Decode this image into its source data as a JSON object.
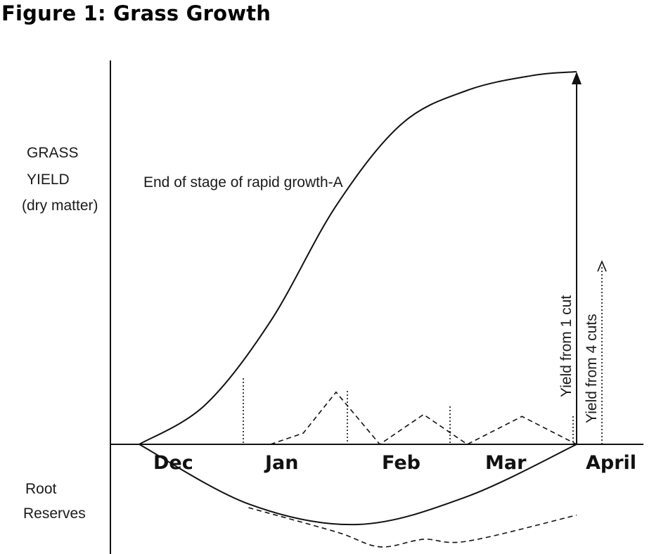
{
  "title": "Figure 1: Grass Growth",
  "chart_data": {
    "type": "line",
    "title": "Figure 1: Grass Growth",
    "ylabel_lines": [
      "GRASS",
      "YIELD",
      "(dry matter)"
    ],
    "lower_label_lines": [
      "Root",
      "Reserves"
    ],
    "categories": [
      "Dec",
      "Jan",
      "Feb",
      "Mar",
      "April"
    ],
    "annotations": {
      "rapid_growth": "End of stage of rapid growth-A",
      "one_cut": "Yield from  1 cut",
      "four_cuts": "Yield  from 4 cuts"
    },
    "grid": false,
    "series": [
      {
        "name": "",
        "style": "solid",
        "x": [
          0.0,
          0.6,
          1.2,
          1.8,
          2.4,
          3.0,
          3.6,
          4.0
        ],
        "y": [
          0.0,
          10.5,
          33.0,
          64.0,
          86.0,
          95.0,
          99.0,
          100.0
        ]
      },
      {
        "name": "",
        "style": "dashed",
        "x": [
          1.2,
          1.5,
          1.8,
          2.2,
          2.6,
          3.0,
          3.5,
          4.0
        ],
        "y": [
          0.0,
          3.0,
          14.0,
          0.0,
          8.0,
          0.0,
          7.5,
          0.0
        ]
      },
      {
        "name": "",
        "style": "solid",
        "x": [
          0.0,
          1.0,
          2.0,
          3.0,
          4.0
        ],
        "y": [
          0.0,
          -16.0,
          -21.5,
          -14.0,
          0.0
        ]
      },
      {
        "name": "",
        "style": "dashed",
        "x": [
          1.0,
          1.8,
          2.2,
          2.6,
          3.0,
          4.0
        ],
        "y": [
          -17.0,
          -23.5,
          -27.5,
          -25.5,
          -26.0,
          -19.0
        ]
      }
    ]
  }
}
